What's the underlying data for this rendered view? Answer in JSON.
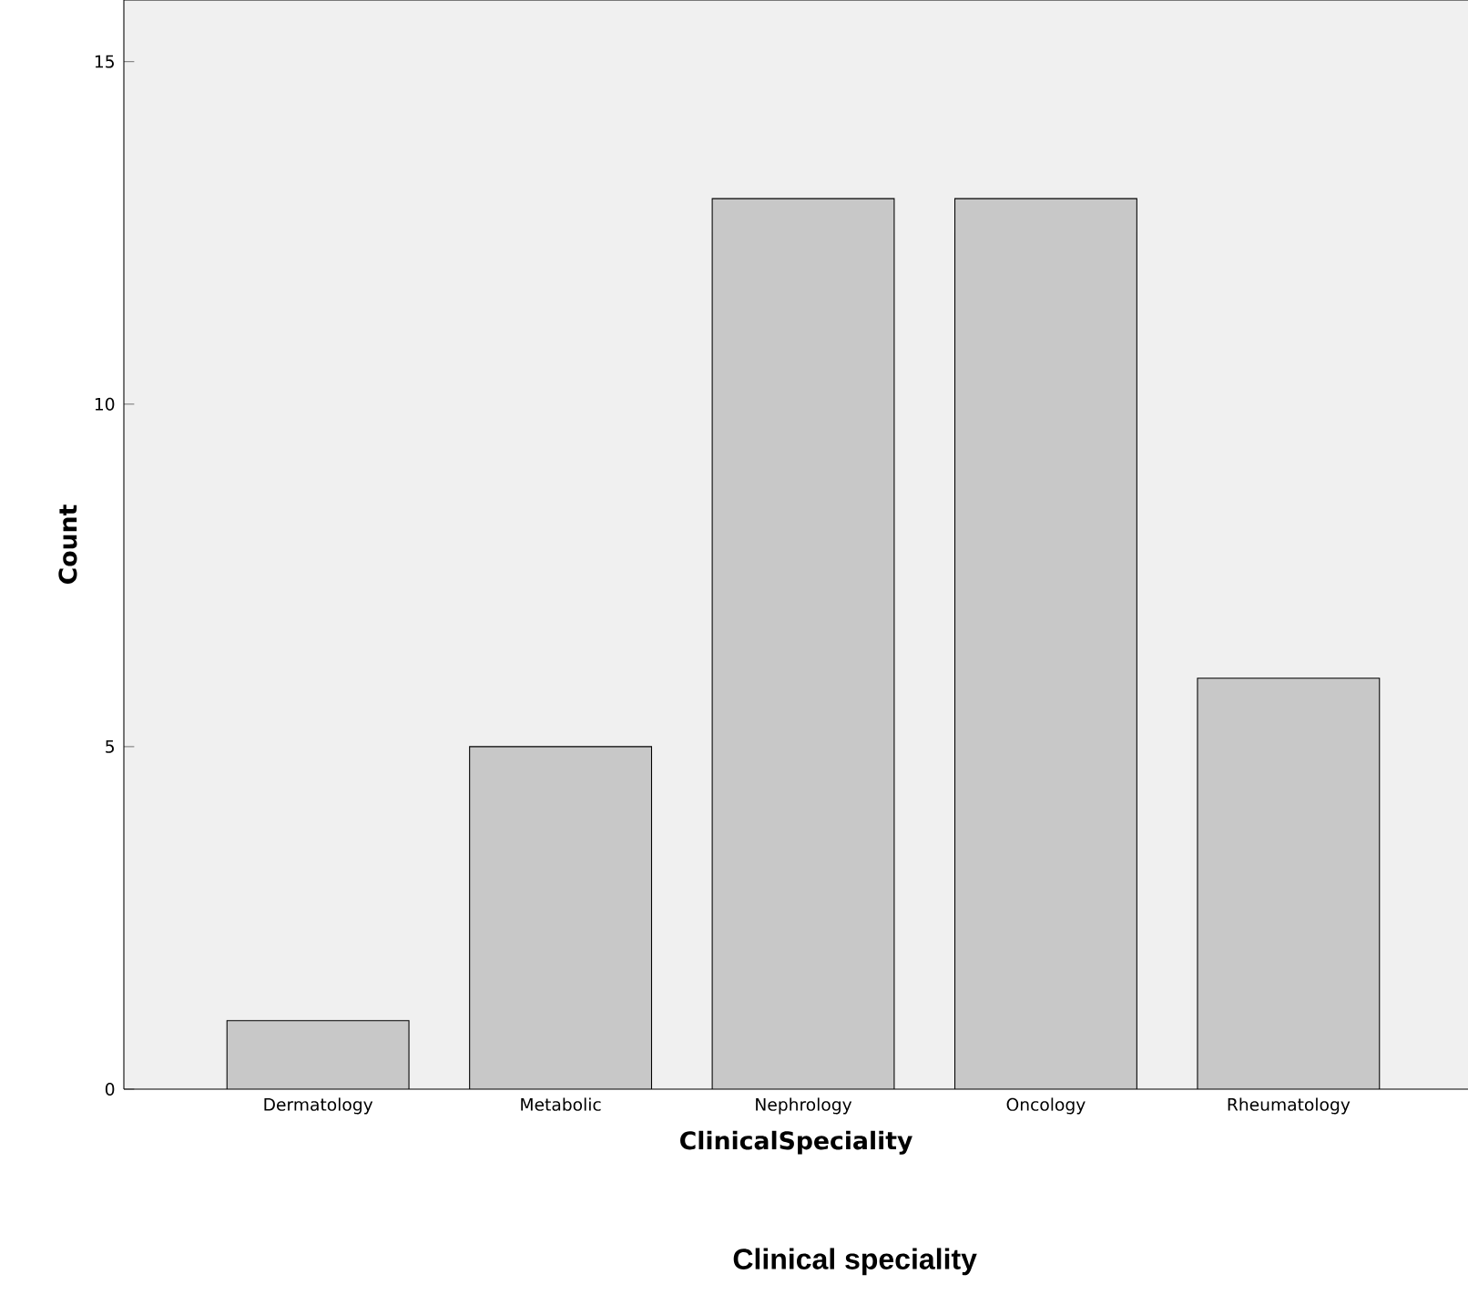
{
  "chart_data": {
    "type": "bar",
    "xlabel": "ClinicalSpeciality",
    "ylabel": "Count",
    "categories": [
      "Dermatology",
      "Metabolic",
      "Nephrology",
      "Oncology",
      "Rheumatology"
    ],
    "values": [
      1,
      5,
      13,
      13,
      6
    ],
    "color": "#c8c8c8",
    "ylim": [
      0,
      15.9
    ],
    "yticks": [
      0,
      5,
      10,
      15
    ],
    "grid": false,
    "annotations": [
      "Clinical speciality"
    ]
  }
}
